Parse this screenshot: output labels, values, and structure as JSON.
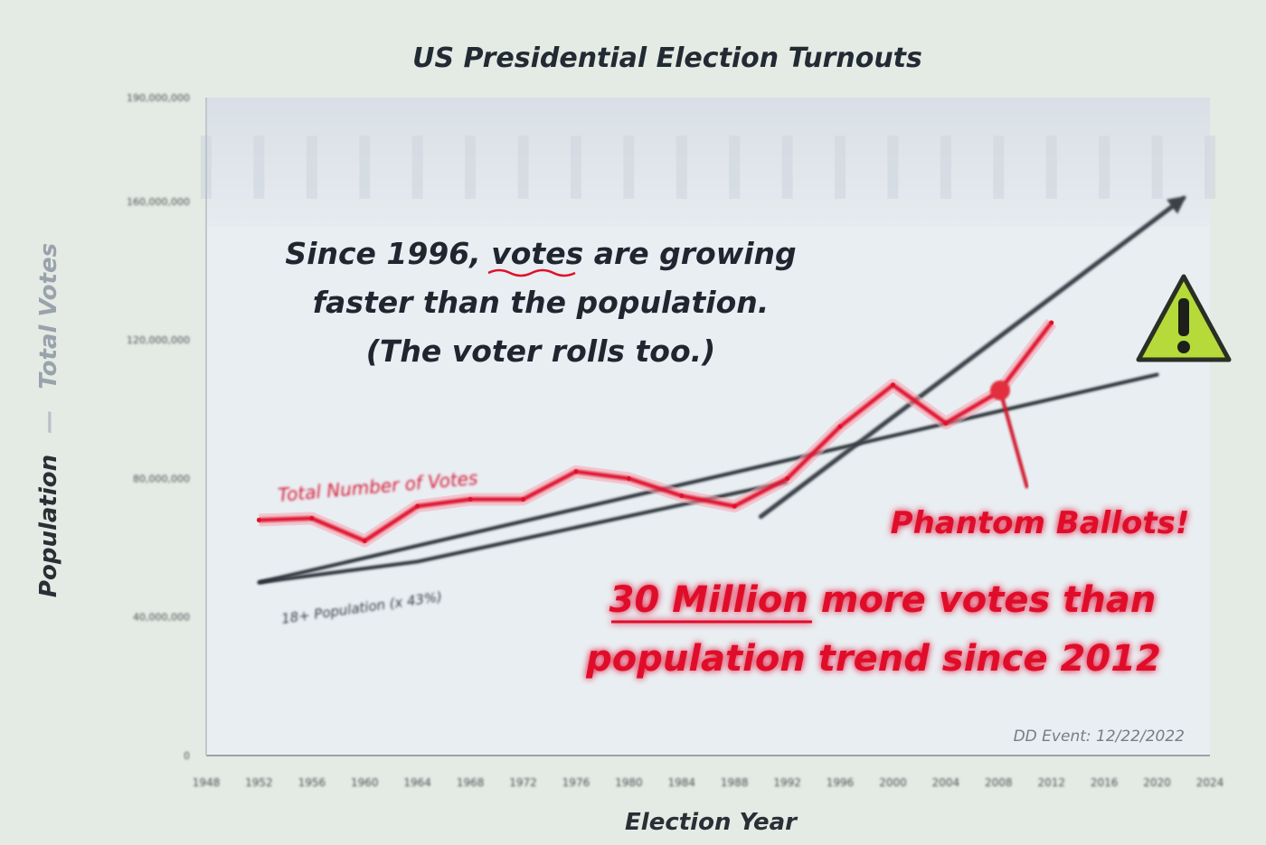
{
  "chart_data": {
    "type": "line",
    "title": "US Presidential Election Turnouts",
    "xlabel": "Election Year",
    "ylabel": "Population / Total Votes",
    "ylabel_parts": [
      "Population",
      "Total Votes"
    ],
    "x": [
      1952,
      1956,
      1960,
      1964,
      1968,
      1972,
      1976,
      1980,
      1984,
      1988,
      1992,
      1996,
      2000,
      2004,
      2008,
      2012,
      2016,
      2020
    ],
    "xlim": [
      1948,
      2024
    ],
    "ylim": [
      0,
      190000000
    ],
    "y_ticks": [
      "0",
      "40,000,000",
      "80,000,000",
      "120,000,000",
      "160,000,000",
      "190,000,000"
    ],
    "y_tick_values": [
      0,
      40000000,
      80000000,
      120000000,
      160000000,
      190000000
    ],
    "x_ticks": [
      "1948",
      "1952",
      "1956",
      "1960",
      "1964",
      "1968",
      "1972",
      "1976",
      "1980",
      "1984",
      "1988",
      "1992",
      "1996",
      "2000",
      "2004",
      "2008",
      "2012",
      "2016",
      "2020",
      "2024"
    ],
    "series": [
      {
        "name": "Total Number of Votes",
        "color": "#e0102a",
        "values": [
          68000000,
          68500000,
          62000000,
          72000000,
          74000000,
          74000000,
          82000000,
          80000000,
          75000000,
          72000000,
          80000000,
          95000000,
          107000000,
          96000000,
          105000000,
          125000000,
          null,
          null
        ]
      },
      {
        "name": "18+ Population (x 43%)",
        "color": "#2c3138",
        "values": [
          50000000,
          null,
          null,
          56000000,
          null,
          null,
          null,
          null,
          null,
          null,
          79000000,
          null,
          null,
          null,
          null,
          null,
          null,
          null
        ]
      }
    ],
    "population_trend": {
      "x": [
        1952,
        2020
      ],
      "y": [
        50000000,
        110000000
      ]
    },
    "votes_trend": {
      "x": [
        1990,
        2022
      ],
      "y": [
        69000000,
        161000000
      ]
    },
    "annotations": {
      "since_1996": [
        "Since 1996, votes are growing",
        "faster than the population.",
        "(The voter rolls too.)"
      ],
      "since_1996_emphasis": "votes",
      "phantom": "Phantom Ballots!",
      "more_votes": [
        "30 Million more votes than",
        "population trend since 2012"
      ],
      "credit": "DD Event: 12/22/2022"
    },
    "grid": false,
    "legend": "inline-labels",
    "warning_icon": "warning-triangle-icon"
  }
}
